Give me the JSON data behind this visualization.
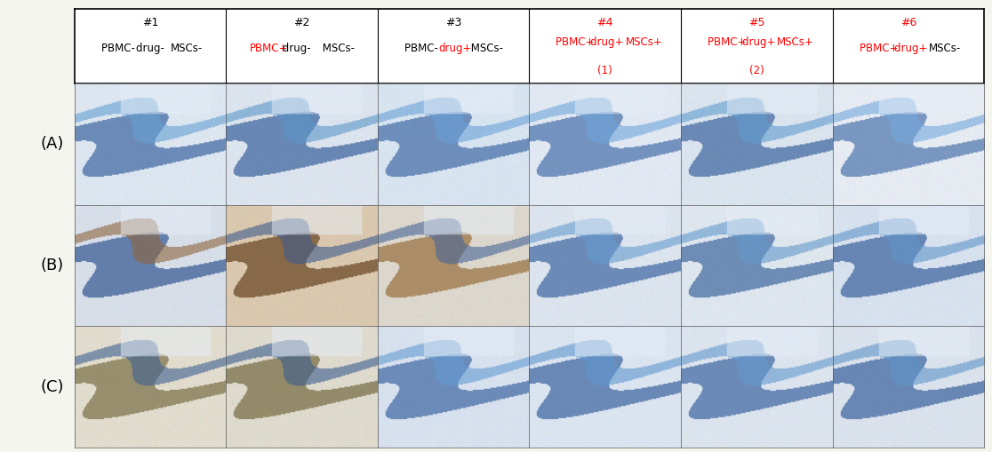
{
  "background_color": "#f5f5f0",
  "row_labels": [
    "(A)",
    "(B)",
    "(C)"
  ],
  "n_cols": 6,
  "n_rows": 3,
  "col_label_data": [
    {
      "num": "#1",
      "num_color": "black",
      "parts": [
        [
          "PBMC",
          "black"
        ],
        [
          "- ",
          "black"
        ],
        [
          "drug",
          "black"
        ],
        [
          "- ",
          "black"
        ],
        [
          "MSCs",
          "black"
        ],
        [
          "-",
          "black"
        ]
      ],
      "line2": null
    },
    {
      "num": "#2",
      "num_color": "black",
      "parts": [
        [
          "PBMC",
          "red"
        ],
        [
          "+",
          "red"
        ],
        [
          " drug",
          "black"
        ],
        [
          "- ",
          "black"
        ],
        [
          " MSCs",
          "black"
        ],
        [
          "-",
          "black"
        ]
      ],
      "line2": null
    },
    {
      "num": "#3",
      "num_color": "black",
      "parts": [
        [
          "PBMC",
          "black"
        ],
        [
          "- ",
          "black"
        ],
        [
          "drug",
          "red"
        ],
        [
          "+",
          "red"
        ],
        [
          " MSCs",
          "black"
        ],
        [
          "-",
          "black"
        ]
      ],
      "line2": null
    },
    {
      "num": "#4",
      "num_color": "red",
      "parts": [
        [
          "PBMC",
          "red"
        ],
        [
          "+ ",
          "red"
        ],
        [
          "drug",
          "red"
        ],
        [
          "+ ",
          "red"
        ],
        [
          "MSCs",
          "red"
        ],
        [
          "+",
          "red"
        ]
      ],
      "line2": "(1)"
    },
    {
      "num": "#5",
      "num_color": "red",
      "parts": [
        [
          "PBMC",
          "red"
        ],
        [
          "+ ",
          "red"
        ],
        [
          "drug",
          "red"
        ],
        [
          "+ ",
          "red"
        ],
        [
          "MSCs",
          "red"
        ],
        [
          "+",
          "red"
        ]
      ],
      "line2": "(2)"
    },
    {
      "num": "#6",
      "num_color": "red",
      "parts": [
        [
          "PBMC",
          "red"
        ],
        [
          "+ ",
          "red"
        ],
        [
          "drug",
          "red"
        ],
        [
          "+ ",
          "red"
        ],
        [
          "MSCs",
          "black"
        ],
        [
          "-",
          "black"
        ]
      ],
      "line2": null
    }
  ],
  "cell_colors": {
    "A": [
      {
        "bg": [
          220,
          230,
          240
        ],
        "stripe": [
          60,
          100,
          160
        ],
        "stripe2": [
          100,
          160,
          210
        ]
      },
      {
        "bg": [
          220,
          228,
          238
        ],
        "stripe": [
          55,
          95,
          155
        ],
        "stripe2": [
          90,
          150,
          200
        ]
      },
      {
        "bg": [
          215,
          228,
          240
        ],
        "stripe": [
          65,
          105,
          165
        ],
        "stripe2": [
          105,
          160,
          215
        ]
      },
      {
        "bg": [
          225,
          232,
          242
        ],
        "stripe": [
          70,
          110,
          170
        ],
        "stripe2": [
          110,
          165,
          218
        ]
      },
      {
        "bg": [
          218,
          228,
          238
        ],
        "stripe": [
          58,
          98,
          158
        ],
        "stripe2": [
          95,
          155,
          205
        ]
      },
      {
        "bg": [
          230,
          235,
          242
        ],
        "stripe": [
          75,
          115,
          172
        ],
        "stripe2": [
          115,
          168,
          220
        ]
      }
    ],
    "B": [
      {
        "bg": [
          215,
          222,
          232
        ],
        "stripe": [
          50,
          85,
          145
        ],
        "stripe2": [
          140,
          100,
          60
        ]
      },
      {
        "bg": [
          218,
          200,
          175
        ],
        "stripe": [
          100,
          65,
          30
        ],
        "stripe2": [
          60,
          90,
          140
        ]
      },
      {
        "bg": [
          220,
          215,
          205
        ],
        "stripe": [
          150,
          110,
          60
        ],
        "stripe2": [
          70,
          100,
          150
        ]
      },
      {
        "bg": [
          220,
          228,
          238
        ],
        "stripe": [
          60,
          100,
          160
        ],
        "stripe2": [
          100,
          155,
          205
        ]
      },
      {
        "bg": [
          222,
          230,
          238
        ],
        "stripe": [
          62,
          102,
          158
        ],
        "stripe2": [
          98,
          152,
          202
        ]
      },
      {
        "bg": [
          215,
          225,
          238
        ],
        "stripe": [
          55,
          95,
          155
        ],
        "stripe2": [
          95,
          148,
          200
        ]
      }
    ],
    "C": [
      {
        "bg": [
          225,
          220,
          205
        ],
        "stripe": [
          120,
          110,
          70
        ],
        "stripe2": [
          60,
          95,
          145
        ]
      },
      {
        "bg": [
          222,
          218,
          205
        ],
        "stripe": [
          115,
          105,
          65
        ],
        "stripe2": [
          58,
          92,
          142
        ]
      },
      {
        "bg": [
          215,
          225,
          238
        ],
        "stripe": [
          62,
          102,
          162
        ],
        "stripe2": [
          100,
          155,
          210
        ]
      },
      {
        "bg": [
          218,
          228,
          240
        ],
        "stripe": [
          58,
          98,
          158
        ],
        "stripe2": [
          95,
          150,
          205
        ]
      },
      {
        "bg": [
          220,
          228,
          238
        ],
        "stripe": [
          60,
          100,
          160
        ],
        "stripe2": [
          98,
          152,
          205
        ]
      },
      {
        "bg": [
          218,
          226,
          236
        ],
        "stripe": [
          56,
          96,
          156
        ],
        "stripe2": [
          94,
          148,
          200
        ]
      }
    ]
  }
}
